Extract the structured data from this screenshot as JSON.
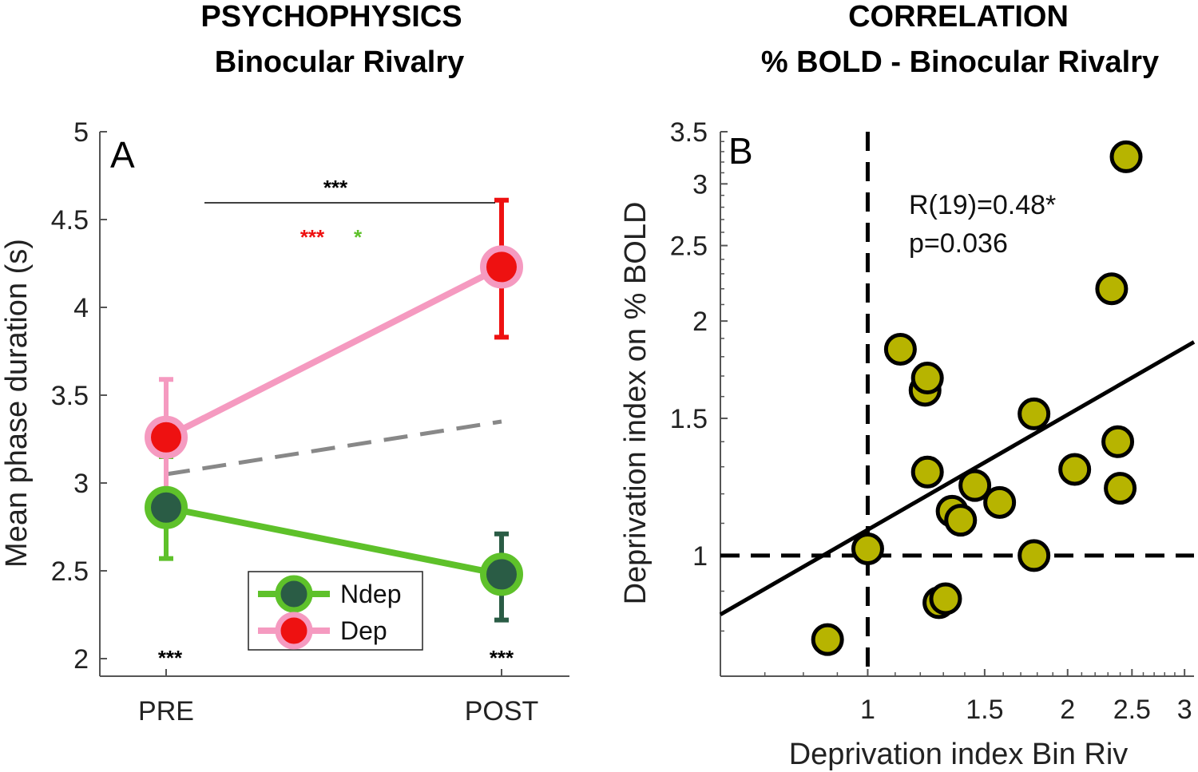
{
  "chart_data": [
    {
      "type": "line",
      "panel": "A",
      "title_line1": "PSYCHOPHYSICS",
      "title_line2": "Binocular Rivalry",
      "ylabel": "Mean phase duration (s)",
      "xlabel": "",
      "categories": [
        "PRE",
        "POST"
      ],
      "ylim": [
        1.9,
        5
      ],
      "yticks": [
        "2",
        "2.5",
        "3",
        "3.5",
        "4",
        "4.5",
        "5"
      ],
      "series": [
        {
          "name": "Ndep",
          "values": [
            2.86,
            2.48
          ],
          "err_low": [
            2.57,
            2.22
          ],
          "err_high": [
            3.15,
            2.71
          ],
          "line_color": "#5ec12a",
          "fill_color": "#2a5c45",
          "err_color": "#5ec12a"
        },
        {
          "name": "Dep",
          "values": [
            3.26,
            4.23
          ],
          "err_low": [
            2.93,
            3.83
          ],
          "err_high": [
            3.59,
            4.61
          ],
          "line_color": "#f59ac0",
          "fill_color": "#ee1111",
          "err_color": "#ee1111"
        }
      ],
      "reference_line": {
        "style": "dashed",
        "color": "#888888",
        "values": [
          3.05,
          3.35
        ]
      },
      "annotations": {
        "bracket_stars": "***",
        "red_stars": "***",
        "green_star": "*",
        "pre_stars": "***",
        "post_stars": "***"
      },
      "legend": {
        "position": "bottom-center",
        "entries": [
          "Ndep",
          "Dep"
        ]
      }
    },
    {
      "type": "scatter",
      "panel": "B",
      "title_line1": "CORRELATION",
      "title_line2": "% BOLD - Binocular Rivalry",
      "xlabel": "Deprivation index Bin Riv",
      "ylabel": "Deprivation index on % BOLD",
      "xscale": "log",
      "yscale": "log",
      "xlim": [
        0.6,
        3.1
      ],
      "ylim": [
        0.7,
        3.5
      ],
      "xticks": [
        "1",
        "1.5",
        "2",
        "2.5",
        "3"
      ],
      "yticks": [
        "1",
        "1.5",
        "2",
        "2.5",
        "3",
        "3.5"
      ],
      "point_color": "#b7b400",
      "x": [
        0.87,
        1.12,
        1.22,
        1.23,
        1.23,
        1.28,
        1.34,
        1.38,
        1.45,
        1.58,
        1.78,
        1.78,
        2.05,
        2.33,
        2.38,
        2.4,
        2.45,
        1.31,
        1.0
      ],
      "y": [
        0.78,
        1.84,
        1.63,
        1.69,
        1.28,
        0.87,
        1.14,
        1.11,
        1.23,
        1.17,
        1.52,
        1.0,
        1.29,
        2.2,
        1.4,
        1.22,
        3.25,
        0.88,
        1.02
      ],
      "fit_line": {
        "x": [
          0.6,
          3.1
        ],
        "y": [
          0.84,
          1.88
        ]
      },
      "reference_lines": {
        "x": 1,
        "y": 1,
        "style": "dashed"
      },
      "annotation_line1": "R(19)=0.48*",
      "annotation_line2": "p=0.036"
    }
  ]
}
